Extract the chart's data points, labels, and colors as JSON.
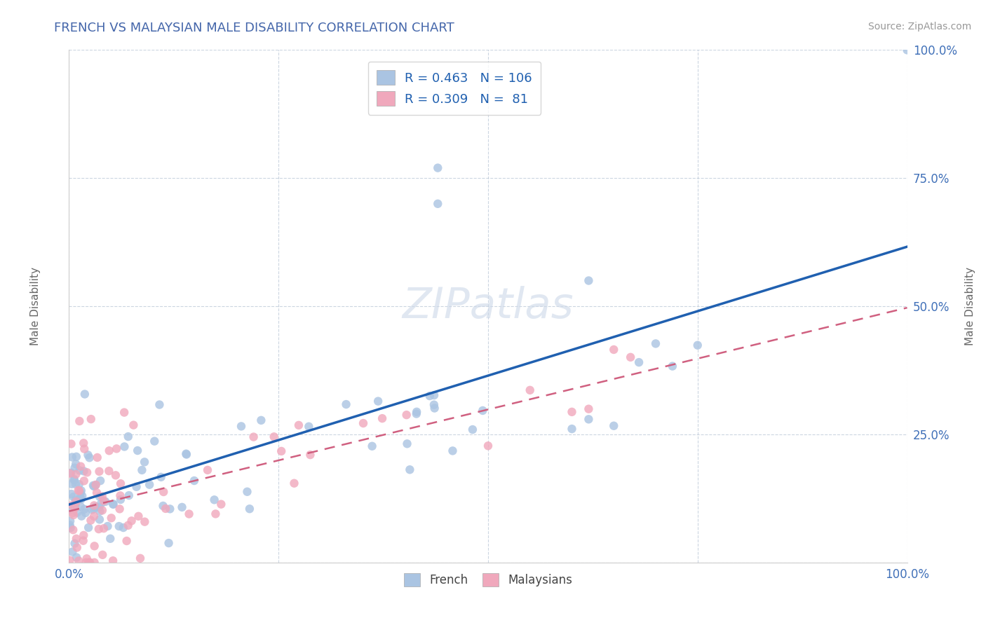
{
  "title": "FRENCH VS MALAYSIAN MALE DISABILITY CORRELATION CHART",
  "source": "Source: ZipAtlas.com",
  "ylabel": "Male Disability",
  "french_R": 0.463,
  "french_N": 106,
  "malaysian_R": 0.309,
  "malaysian_N": 81,
  "french_color": "#aac4e2",
  "french_line_color": "#2060b0",
  "malaysian_color": "#f0a8bc",
  "malaysian_line_color": "#d06080",
  "background_color": "#ffffff",
  "grid_color": "#c0ccda",
  "title_color": "#4466aa",
  "legend_text_color": "#2060b0",
  "tick_label_color": "#4070b8",
  "watermark_color": "#ccd8e8",
  "watermark_alpha": 0.6,
  "french_label": "French",
  "malaysian_label": "Malaysians"
}
